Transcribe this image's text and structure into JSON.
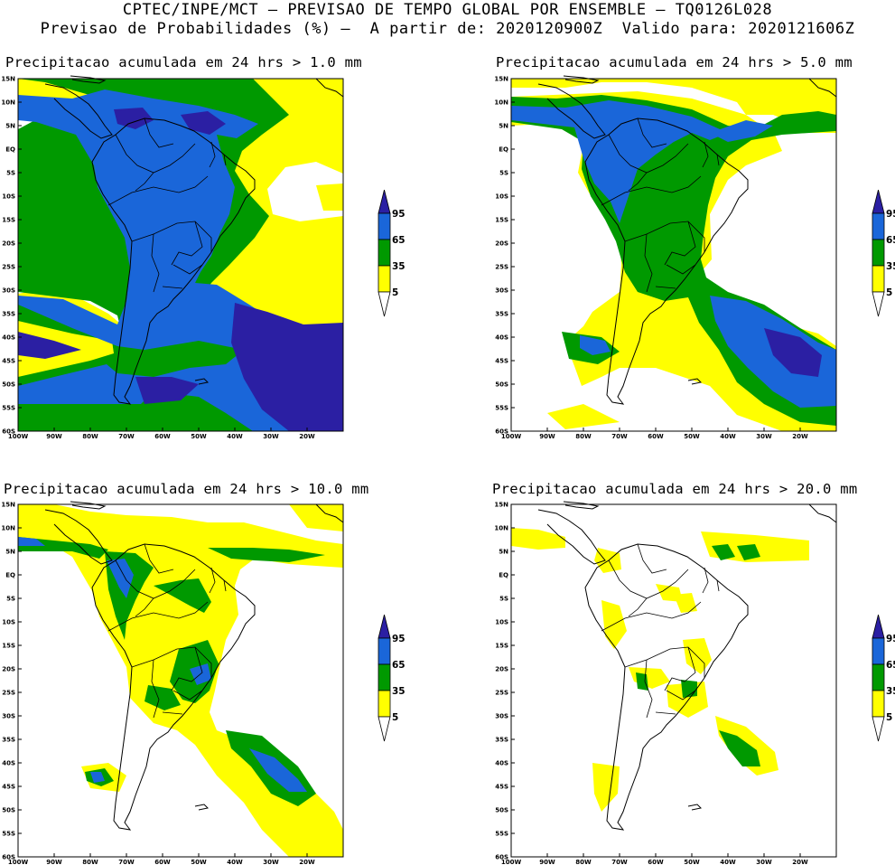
{
  "header": {
    "line1": "CPTEC/INPE/MCT – PREVISAO DE TEMPO GLOBAL POR ENSEMBLE – TQ0126L028",
    "line2": "Previsao de Probabilidades (%) –  A partir de: 2020120900Z  Valido para: 2020121606Z"
  },
  "panels": [
    {
      "title": "Precipitacao acumulada em 24 hrs > 1.0 mm"
    },
    {
      "title": "Precipitacao acumulada em 24 hrs > 5.0 mm"
    },
    {
      "title": "Precipitacao acumulada em 24 hrs > 10.0 mm"
    },
    {
      "title": "Precipitacao acumulada em 24 hrs > 20.0 mm"
    }
  ],
  "axes": {
    "lat_labels": [
      "15N",
      "10N",
      "5N",
      "EQ",
      "5S",
      "10S",
      "15S",
      "20S",
      "25S",
      "30S",
      "35S",
      "40S",
      "45S",
      "50S",
      "55S",
      "60S"
    ],
    "lon_labels": [
      "100W",
      "90W",
      "80W",
      "70W",
      "60W",
      "50W",
      "40W",
      "30W",
      "20W"
    ]
  },
  "legend": {
    "labels": [
      "95",
      "65",
      "35",
      "5"
    ],
    "colors": {
      "yellow": "#ffff00",
      "green": "#009900",
      "blue": "#1a66d9",
      "dark_blue": "#2b1fa3"
    }
  }
}
